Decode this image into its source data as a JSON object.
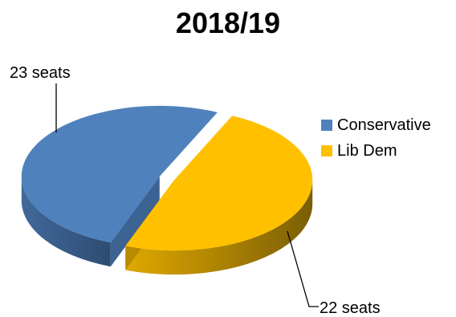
{
  "chart_data": {
    "type": "pie",
    "title": "2018/19",
    "categories": [
      "Conservative",
      "Lib Dem"
    ],
    "values": [
      23,
      22
    ],
    "data_labels": [
      "23 seats",
      "22 seats"
    ],
    "colors": [
      "#4f81bd",
      "#ffc000"
    ],
    "legend_position": "right",
    "three_d": true,
    "exploded": true
  }
}
